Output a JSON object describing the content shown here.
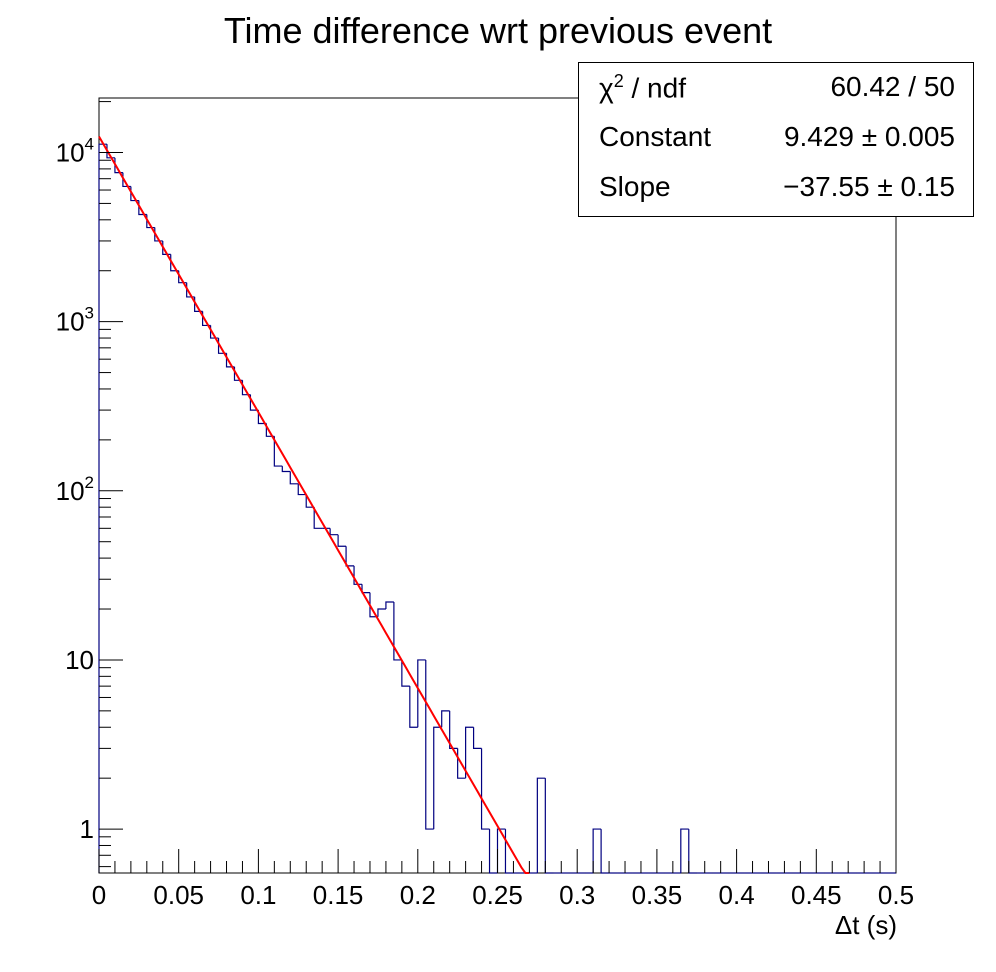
{
  "chart_data": {
    "type": "histogram",
    "title": "Time difference wrt previous event",
    "xlabel": "Δt (s)",
    "ylabel": "",
    "xlim": [
      0,
      0.5
    ],
    "ylim": [
      0.55,
      21000
    ],
    "yscale": "log",
    "xticks": [
      "0",
      "0.05",
      "0.1",
      "0.15",
      "0.2",
      "0.25",
      "0.3",
      "0.35",
      "0.4",
      "0.45",
      "0.5"
    ],
    "xtick_values": [
      0,
      0.05,
      0.1,
      0.15,
      0.2,
      0.25,
      0.3,
      0.35,
      0.4,
      0.45,
      0.5
    ],
    "yticks": [
      {
        "value": 1,
        "base": "1",
        "exp": ""
      },
      {
        "value": 10,
        "base": "10",
        "exp": ""
      },
      {
        "value": 100,
        "base": "10",
        "exp": "2"
      },
      {
        "value": 1000,
        "base": "10",
        "exp": "3"
      },
      {
        "value": 10000,
        "base": "10",
        "exp": "4"
      }
    ],
    "bin_width": 0.005,
    "bin_counts": [
      11200,
      9300,
      7600,
      6300,
      5200,
      4300,
      3600,
      3000,
      2500,
      2000,
      1700,
      1400,
      1150,
      950,
      800,
      650,
      540,
      450,
      370,
      300,
      250,
      210,
      140,
      130,
      110,
      95,
      80,
      60,
      60,
      55,
      47,
      36,
      28,
      25,
      18,
      20,
      22,
      10,
      7,
      4,
      10,
      1,
      4,
      5,
      3,
      2,
      4,
      3,
      1,
      0,
      1,
      0,
      0,
      0,
      0,
      2,
      0,
      0,
      0,
      0,
      0,
      0,
      1,
      0,
      0,
      0,
      0,
      0,
      0,
      0,
      0,
      0,
      0,
      1,
      0,
      0,
      0,
      0,
      0,
      0,
      0,
      0,
      0,
      0,
      0,
      0,
      0,
      0,
      0,
      0,
      0,
      0,
      0,
      0,
      0,
      0,
      0,
      0,
      0,
      0
    ],
    "series": [
      {
        "name": "",
        "kind": "histogram",
        "color": "#000080"
      },
      {
        "name": "",
        "kind": "fit",
        "function": "exp(Constant + Slope*x)",
        "constant": 9.429,
        "slope": -37.55,
        "x_range": [
          0,
          0.27
        ],
        "color": "#ff0000"
      }
    ],
    "grid": false
  },
  "stats": {
    "rows": [
      {
        "label": "χ",
        "sup": "2",
        "label_rest": " / ndf",
        "value": "60.42 / 50"
      },
      {
        "label": "Constant",
        "sup": "",
        "label_rest": "",
        "value": "9.429 ± 0.005"
      },
      {
        "label": "Slope",
        "sup": "",
        "label_rest": "",
        "value": "−37.55 ± 0.15"
      }
    ]
  },
  "colors": {
    "histogram": "#000080",
    "fit": "#ff0000",
    "axis": "#000000"
  }
}
